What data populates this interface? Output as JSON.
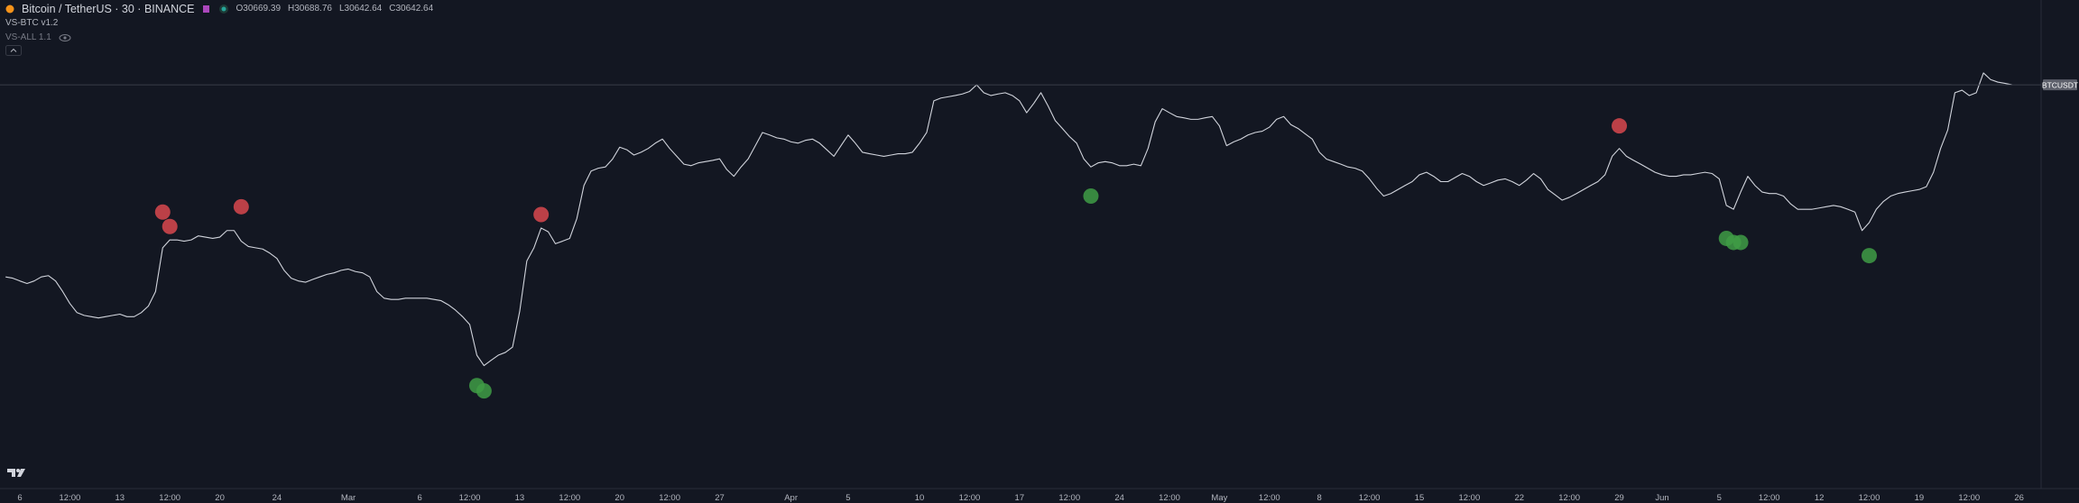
{
  "header": {
    "symbol": "Bitcoin / TetherUS · 30 · BINANCE",
    "ohlc": [
      "O30669.39",
      "H30688.76",
      "L30642.64",
      "C30642.64"
    ],
    "indicators": [
      "VS-BTC v1.2",
      "VS-ALL 1.1"
    ]
  },
  "chart_data": {
    "type": "line",
    "ylim": [
      14740,
      33990
    ],
    "categories": [
      null,
      null,
      "6",
      null,
      null,
      null,
      null,
      null,
      null,
      "12:00",
      null,
      null,
      null,
      null,
      null,
      null,
      "13",
      null,
      null,
      null,
      null,
      null,
      null,
      "12:00",
      null,
      null,
      null,
      null,
      null,
      null,
      "20",
      null,
      null,
      null,
      null,
      null,
      null,
      null,
      "24",
      null,
      null,
      null,
      null,
      null,
      null,
      null,
      null,
      null,
      "Mar",
      null,
      null,
      null,
      null,
      null,
      null,
      null,
      null,
      null,
      "6",
      null,
      null,
      null,
      null,
      null,
      null,
      "12:00",
      null,
      null,
      null,
      null,
      null,
      null,
      "13",
      null,
      null,
      null,
      null,
      null,
      null,
      "12:00",
      null,
      null,
      null,
      null,
      null,
      null,
      "20",
      null,
      null,
      null,
      null,
      null,
      null,
      "12:00",
      null,
      null,
      null,
      null,
      null,
      null,
      "27",
      null,
      null,
      null,
      null,
      null,
      null,
      null,
      null,
      null,
      "Apr",
      null,
      null,
      null,
      null,
      null,
      null,
      null,
      "5",
      null,
      null,
      null,
      null,
      null,
      null,
      null,
      null,
      null,
      "10",
      null,
      null,
      null,
      null,
      null,
      null,
      "12:00",
      null,
      null,
      null,
      null,
      null,
      null,
      "17",
      null,
      null,
      null,
      null,
      null,
      null,
      "12:00",
      null,
      null,
      null,
      null,
      null,
      null,
      "24",
      null,
      null,
      null,
      null,
      null,
      null,
      "12:00",
      null,
      null,
      null,
      null,
      null,
      null,
      "May",
      null,
      null,
      null,
      null,
      null,
      null,
      "12:00",
      null,
      null,
      null,
      null,
      null,
      null,
      "8",
      null,
      null,
      null,
      null,
      null,
      null,
      "12:00",
      null,
      null,
      null,
      null,
      null,
      null,
      "15",
      null,
      null,
      null,
      null,
      null,
      null,
      "12:00",
      null,
      null,
      null,
      null,
      null,
      null,
      "22",
      null,
      null,
      null,
      null,
      null,
      null,
      "12:00",
      null,
      null,
      null,
      null,
      null,
      null,
      "29",
      null,
      null,
      null,
      null,
      null,
      "Jun",
      null,
      null,
      null,
      null,
      null,
      null,
      null,
      "5",
      null,
      null,
      null,
      null,
      null,
      null,
      "12:00",
      null,
      null,
      null,
      null,
      null,
      null,
      "12",
      null,
      null,
      null,
      null,
      null,
      null,
      "12:00",
      null,
      null,
      null,
      null,
      null,
      null,
      "19",
      null,
      null,
      null,
      null,
      null,
      null,
      "12:00",
      null,
      null,
      null,
      null,
      null,
      null,
      "26"
    ],
    "series": [
      {
        "name": "BTCUSDT",
        "color": "#d1d4dc",
        "values": [
          23060,
          23010,
          22900,
          22800,
          22900,
          23060,
          23110,
          22900,
          22480,
          22010,
          21650,
          21540,
          21490,
          21440,
          21490,
          21540,
          21590,
          21490,
          21490,
          21650,
          21910,
          22480,
          24210,
          24520,
          24520,
          24470,
          24520,
          24680,
          24630,
          24580,
          24630,
          24890,
          24890,
          24470,
          24260,
          24210,
          24160,
          24000,
          23790,
          23320,
          23010,
          22900,
          22850,
          22960,
          23060,
          23160,
          23220,
          23320,
          23370,
          23270,
          23220,
          23060,
          22480,
          22220,
          22170,
          22170,
          22220,
          22220,
          22220,
          22220,
          22170,
          22120,
          21960,
          21750,
          21490,
          21180,
          19970,
          19560,
          19770,
          19970,
          20080,
          20290,
          21700,
          23690,
          24210,
          24990,
          24840,
          24370,
          24470,
          24580,
          25360,
          26670,
          27240,
          27350,
          27400,
          27710,
          28180,
          28080,
          27870,
          27980,
          28130,
          28340,
          28500,
          28130,
          27820,
          27510,
          27450,
          27560,
          27610,
          27660,
          27720,
          27300,
          27030,
          27400,
          27720,
          28240,
          28760,
          28660,
          28550,
          28500,
          28390,
          28340,
          28450,
          28500,
          28340,
          28080,
          27820,
          28240,
          28660,
          28340,
          27980,
          27920,
          27870,
          27820,
          27870,
          27920,
          27920,
          27980,
          28340,
          28760,
          30010,
          30120,
          30170,
          30220,
          30280,
          30380,
          30640,
          30330,
          30220,
          30280,
          30330,
          30220,
          30010,
          29540,
          29910,
          30330,
          29810,
          29230,
          28920,
          28600,
          28340,
          27720,
          27400,
          27560,
          27610,
          27560,
          27450,
          27450,
          27510,
          27450,
          28130,
          29180,
          29700,
          29540,
          29390,
          29340,
          29280,
          29280,
          29340,
          29390,
          29020,
          28240,
          28390,
          28500,
          28660,
          28760,
          28810,
          28970,
          29280,
          29390,
          29070,
          28920,
          28710,
          28500,
          27980,
          27710,
          27610,
          27510,
          27400,
          27350,
          27240,
          26930,
          26560,
          26250,
          26350,
          26510,
          26670,
          26820,
          27090,
          27190,
          27030,
          26820,
          26820,
          26980,
          27140,
          27030,
          26820,
          26670,
          26770,
          26880,
          26930,
          26820,
          26670,
          26880,
          27140,
          26930,
          26510,
          26300,
          26090,
          26200,
          26350,
          26510,
          26670,
          26820,
          27090,
          27820,
          28130,
          27820,
          27660,
          27510,
          27350,
          27190,
          27090,
          27030,
          27030,
          27090,
          27090,
          27140,
          27190,
          27140,
          26930,
          25880,
          25730,
          26410,
          27030,
          26670,
          26410,
          26350,
          26350,
          26250,
          25940,
          25730,
          25730,
          25730,
          25780,
          25830,
          25880,
          25830,
          25730,
          25620,
          24890,
          25200,
          25730,
          26040,
          26250,
          26350,
          26410,
          26460,
          26510,
          26620,
          27190,
          28130,
          28860,
          30330,
          30430,
          30220,
          30330,
          31110,
          30850,
          30750,
          30700,
          30642.64,
          null
        ]
      },
      {
        "type": "scatter",
        "color": "#d9484d",
        "values": [
          null,
          null,
          null,
          null,
          null,
          null,
          null,
          null,
          null,
          null,
          null,
          null,
          null,
          null,
          null,
          null,
          null,
          null,
          null,
          null,
          null,
          null,
          25620,
          25050,
          null,
          null,
          null,
          null,
          null,
          null,
          null,
          null,
          null,
          25830,
          null,
          null,
          null,
          null,
          null,
          null,
          null,
          null,
          null,
          null,
          null,
          null,
          null,
          null,
          null,
          null,
          null,
          null,
          null,
          null,
          null,
          null,
          null,
          null,
          null,
          null,
          null,
          null,
          null,
          null,
          null,
          null,
          null,
          null,
          null,
          null,
          null,
          null,
          null,
          null,
          null,
          25520,
          null,
          null,
          null,
          null,
          null,
          null,
          null,
          null,
          null,
          null,
          null,
          null,
          null,
          null,
          null,
          null,
          null,
          null,
          null,
          null,
          null,
          null,
          null,
          null,
          null,
          null,
          null,
          null,
          null,
          null,
          null,
          null,
          null,
          null,
          null,
          null,
          null,
          null,
          null,
          null,
          null,
          null,
          null,
          null,
          null,
          null,
          null,
          null,
          null,
          null,
          null,
          null,
          null,
          null,
          null,
          null,
          null,
          null,
          null,
          null,
          null,
          null,
          null,
          null,
          null,
          null,
          null,
          null,
          null,
          null,
          null,
          null,
          null,
          null,
          null,
          null,
          null,
          null,
          null,
          null,
          null,
          null,
          null,
          null,
          null,
          null,
          null,
          null,
          null,
          null,
          null,
          null,
          null,
          null,
          null,
          null,
          null,
          null,
          null,
          null,
          null,
          null,
          null,
          null,
          null,
          null,
          null,
          null,
          null,
          null,
          null,
          null,
          null,
          null,
          null,
          null,
          null,
          null,
          null,
          null,
          null,
          null,
          null,
          null,
          null,
          null,
          null,
          null,
          null,
          null,
          null,
          null,
          null,
          null,
          null,
          null,
          null,
          null,
          null,
          null,
          null,
          null,
          null,
          null,
          null,
          null,
          null,
          null,
          null,
          null,
          29020,
          null,
          null,
          null,
          null,
          null,
          null,
          null,
          null,
          null,
          null,
          null,
          null,
          null,
          null,
          null,
          null,
          null,
          null,
          null,
          null,
          null,
          null,
          null,
          null,
          null,
          null,
          null,
          null,
          null,
          null,
          null,
          null,
          null,
          null,
          null,
          null,
          null,
          null,
          null,
          null,
          null,
          null,
          null,
          null,
          null,
          null,
          null,
          null,
          null,
          null,
          null,
          null,
          null,
          null,
          null,
          null
        ]
      },
      {
        "type": "scatter",
        "color": "#3f9c45",
        "values": [
          null,
          null,
          null,
          null,
          null,
          null,
          null,
          null,
          null,
          null,
          null,
          null,
          null,
          null,
          null,
          null,
          null,
          null,
          null,
          null,
          null,
          null,
          null,
          null,
          null,
          null,
          null,
          null,
          null,
          null,
          null,
          null,
          null,
          null,
          null,
          null,
          null,
          null,
          null,
          null,
          null,
          null,
          null,
          null,
          null,
          null,
          null,
          null,
          null,
          null,
          null,
          null,
          null,
          null,
          null,
          null,
          null,
          null,
          null,
          null,
          null,
          null,
          null,
          null,
          null,
          null,
          18770,
          18560,
          null,
          null,
          null,
          null,
          null,
          null,
          null,
          null,
          null,
          null,
          null,
          null,
          null,
          null,
          null,
          null,
          null,
          null,
          null,
          null,
          null,
          null,
          null,
          null,
          null,
          null,
          null,
          null,
          null,
          null,
          null,
          null,
          null,
          null,
          null,
          null,
          null,
          null,
          null,
          null,
          null,
          null,
          null,
          null,
          null,
          null,
          null,
          null,
          null,
          null,
          null,
          null,
          null,
          null,
          null,
          null,
          null,
          null,
          null,
          null,
          null,
          null,
          null,
          null,
          null,
          null,
          null,
          null,
          null,
          null,
          null,
          null,
          null,
          null,
          null,
          null,
          null,
          null,
          null,
          null,
          null,
          null,
          null,
          null,
          26250,
          null,
          null,
          null,
          null,
          null,
          null,
          null,
          null,
          null,
          null,
          null,
          null,
          null,
          null,
          null,
          null,
          null,
          null,
          null,
          null,
          null,
          null,
          null,
          null,
          null,
          null,
          null,
          null,
          null,
          null,
          null,
          null,
          null,
          null,
          null,
          null,
          null,
          null,
          null,
          null,
          null,
          null,
          null,
          null,
          null,
          null,
          null,
          null,
          null,
          null,
          null,
          null,
          null,
          null,
          null,
          null,
          null,
          null,
          null,
          null,
          null,
          null,
          null,
          null,
          null,
          null,
          null,
          null,
          null,
          null,
          null,
          null,
          null,
          null,
          null,
          null,
          null,
          null,
          null,
          null,
          null,
          null,
          null,
          null,
          null,
          null,
          null,
          null,
          24580,
          24420,
          24420,
          null,
          null,
          null,
          null,
          null,
          null,
          null,
          null,
          null,
          null,
          null,
          null,
          null,
          null,
          null,
          null,
          null,
          23900,
          null,
          null,
          null,
          null,
          null,
          null,
          null,
          null,
          null,
          null,
          null,
          null,
          null,
          null,
          null,
          null,
          null,
          null,
          null,
          null,
          null
        ]
      }
    ]
  }
}
